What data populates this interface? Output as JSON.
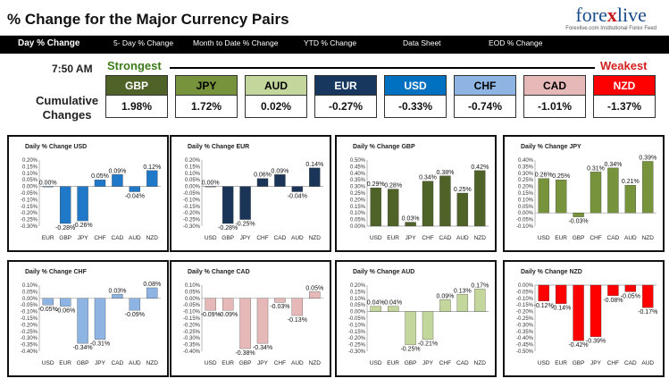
{
  "title": "% Change for the Major Currency Pairs",
  "logo": {
    "text_a": "fore",
    "text_b": "x",
    "text_c": "live",
    "tagline": "Forexlive.com Institutional Forex Feed"
  },
  "nav": [
    {
      "label": "Day % Change",
      "active": true
    },
    {
      "label": "5- Day % Change",
      "active": false
    },
    {
      "label": "Month to Date % Change",
      "active": false
    },
    {
      "label": "YTD % Change",
      "active": false
    },
    {
      "label": "Data Sheet",
      "active": false
    },
    {
      "label": "EOD % Change",
      "active": false
    }
  ],
  "time": "7:50 AM",
  "strongest_label": "Strongest",
  "weakest_label": "Weakest",
  "cumulative_label_1": "Cumulative",
  "cumulative_label_2": "Changes",
  "cumulative": [
    {
      "ccy": "GBP",
      "value": "1.98%",
      "color": "#4f6228",
      "text": "#ffffff"
    },
    {
      "ccy": "JPY",
      "value": "1.72%",
      "color": "#77933c",
      "text": "#000000"
    },
    {
      "ccy": "AUD",
      "value": "0.02%",
      "color": "#c3d69b",
      "text": "#000000"
    },
    {
      "ccy": "EUR",
      "value": "-0.27%",
      "color": "#17375e",
      "text": "#ffffff"
    },
    {
      "ccy": "USD",
      "value": "-0.33%",
      "color": "#0070c0",
      "text": "#ffffff"
    },
    {
      "ccy": "CHF",
      "value": "-0.74%",
      "color": "#8db4e2",
      "text": "#000000"
    },
    {
      "ccy": "CAD",
      "value": "-1.01%",
      "color": "#e6b9b8",
      "text": "#000000"
    },
    {
      "ccy": "NZD",
      "value": "-1.37%",
      "color": "#ff0000",
      "text": "#ffffff"
    }
  ],
  "chart_data": [
    {
      "type": "bar",
      "title": "Daily % Change USD",
      "categories": [
        "EUR",
        "GBP",
        "JPY",
        "CHF",
        "CAD",
        "AUD",
        "NZD"
      ],
      "values": [
        0.0,
        -0.28,
        -0.26,
        0.05,
        0.09,
        -0.04,
        0.12
      ],
      "value_labels": [
        "0.00%",
        "-0.28%",
        "-0.26%",
        "0.05%",
        "0.09%",
        "-0.04%",
        "0.12%"
      ],
      "ylim": [
        -0.3,
        0.2
      ],
      "ticks": [
        "0.20%",
        "0.15%",
        "0.10%",
        "0.05%",
        "0.00%",
        "-0.05%",
        "-0.10%",
        "-0.15%",
        "-0.20%",
        "-0.25%",
        "-0.30%"
      ],
      "color": "#1f78c8"
    },
    {
      "type": "bar",
      "title": "Daily % Change EUR",
      "categories": [
        "USD",
        "GBP",
        "JPY",
        "CHF",
        "CAD",
        "AUD",
        "NZD"
      ],
      "values": [
        0.0,
        -0.28,
        -0.25,
        0.06,
        0.09,
        -0.04,
        0.14
      ],
      "value_labels": [
        "0.00%",
        "-0.28%",
        "-0.25%",
        "0.06%",
        "0.09%",
        "-0.04%",
        "0.14%"
      ],
      "ylim": [
        -0.3,
        0.2
      ],
      "ticks": [
        "0.20%",
        "0.15%",
        "0.10%",
        "0.05%",
        "0.00%",
        "-0.05%",
        "-0.10%",
        "-0.15%",
        "-0.20%",
        "-0.25%",
        "-0.30%"
      ],
      "color": "#1b3558"
    },
    {
      "type": "bar",
      "title": "Daily % Change GBP",
      "categories": [
        "USD",
        "EUR",
        "JPY",
        "CHF",
        "CAD",
        "AUD",
        "NZD"
      ],
      "values": [
        0.29,
        0.28,
        0.03,
        0.34,
        0.38,
        0.25,
        0.42
      ],
      "value_labels": [
        "0.29%",
        "0.28%",
        "0.03%",
        "0.34%",
        "0.38%",
        "0.25%",
        "0.42%"
      ],
      "ylim": [
        0.0,
        0.5
      ],
      "ticks": [
        "0.50%",
        "0.45%",
        "0.40%",
        "0.35%",
        "0.30%",
        "0.25%",
        "0.20%",
        "0.15%",
        "0.10%",
        "0.05%",
        "0.00%"
      ],
      "color": "#4f6228"
    },
    {
      "type": "bar",
      "title": "Daily % Change JPY",
      "categories": [
        "USD",
        "EUR",
        "GBP",
        "CHF",
        "CAD",
        "AUD",
        "NZD"
      ],
      "values": [
        0.26,
        0.25,
        -0.03,
        0.31,
        0.34,
        0.21,
        0.39
      ],
      "value_labels": [
        "0.26%",
        "0.25%",
        "-0.03%",
        "0.31%",
        "0.34%",
        "0.21%",
        "0.39%"
      ],
      "ylim": [
        -0.1,
        0.4
      ],
      "ticks": [
        "0.40%",
        "0.35%",
        "0.30%",
        "0.25%",
        "0.20%",
        "0.15%",
        "0.10%",
        "0.05%",
        "0.00%",
        "-0.05%",
        "-0.10%"
      ],
      "color": "#77933c"
    },
    {
      "type": "bar",
      "title": "Daily % Change CHF",
      "categories": [
        "USD",
        "EUR",
        "GBP",
        "JPY",
        "CAD",
        "AUD",
        "NZD"
      ],
      "values": [
        -0.05,
        -0.06,
        -0.34,
        -0.31,
        0.03,
        -0.09,
        0.08
      ],
      "value_labels": [
        "-0.05%",
        "-0.06%",
        "-0.34%",
        "-0.31%",
        "0.03%",
        "-0.09%",
        "0.08%"
      ],
      "ylim": [
        -0.4,
        0.1
      ],
      "ticks": [
        "0.10%",
        "0.05%",
        "0.00%",
        "-0.05%",
        "-0.10%",
        "-0.15%",
        "-0.20%",
        "-0.25%",
        "-0.30%",
        "-0.35%",
        "-0.40%"
      ],
      "color": "#8db4e2"
    },
    {
      "type": "bar",
      "title": "Daily % Change CAD",
      "categories": [
        "USD",
        "EUR",
        "GBP",
        "JPY",
        "CHF",
        "AUD",
        "NZD"
      ],
      "values": [
        -0.09,
        -0.09,
        -0.38,
        -0.34,
        -0.03,
        -0.13,
        0.05
      ],
      "value_labels": [
        "-0.09%",
        "-0.09%",
        "-0.38%",
        "-0.34%",
        "-0.03%",
        "-0.13%",
        "0.05%"
      ],
      "ylim": [
        -0.4,
        0.1
      ],
      "ticks": [
        "0.10%",
        "0.05%",
        "0.00%",
        "-0.05%",
        "-0.10%",
        "-0.15%",
        "-0.20%",
        "-0.25%",
        "-0.30%",
        "-0.35%",
        "-0.40%"
      ],
      "color": "#e6b9b8"
    },
    {
      "type": "bar",
      "title": "Daily % Change AUD",
      "categories": [
        "USD",
        "EUR",
        "GBP",
        "JPY",
        "CHF",
        "CAD",
        "NZD"
      ],
      "values": [
        0.04,
        0.04,
        -0.25,
        -0.21,
        0.09,
        0.13,
        0.17
      ],
      "value_labels": [
        "0.04%",
        "0.04%",
        "-0.25%",
        "-0.21%",
        "0.09%",
        "0.13%",
        "0.17%"
      ],
      "ylim": [
        -0.3,
        0.2
      ],
      "ticks": [
        "0.20%",
        "0.15%",
        "0.10%",
        "0.05%",
        "0.00%",
        "-0.05%",
        "-0.10%",
        "-0.15%",
        "-0.20%",
        "-0.25%",
        "-0.30%"
      ],
      "color": "#c3d69b"
    },
    {
      "type": "bar",
      "title": "Daily % Change NZD",
      "categories": [
        "USD",
        "EUR",
        "GBP",
        "JPY",
        "CHF",
        "CAD",
        "AUD"
      ],
      "values": [
        -0.12,
        -0.14,
        -0.42,
        -0.39,
        -0.08,
        -0.05,
        -0.17
      ],
      "value_labels": [
        "-0.12%",
        "-0.14%",
        "-0.42%",
        "-0.39%",
        "-0.08%",
        "-0.05%",
        "-0.17%"
      ],
      "ylim": [
        -0.5,
        0.0
      ],
      "ticks": [
        "0.00%",
        "-0.05%",
        "-0.10%",
        "-0.15%",
        "-0.20%",
        "-0.25%",
        "-0.30%",
        "-0.35%",
        "-0.40%",
        "-0.45%",
        "-0.50%"
      ],
      "color": "#ff0000"
    }
  ]
}
